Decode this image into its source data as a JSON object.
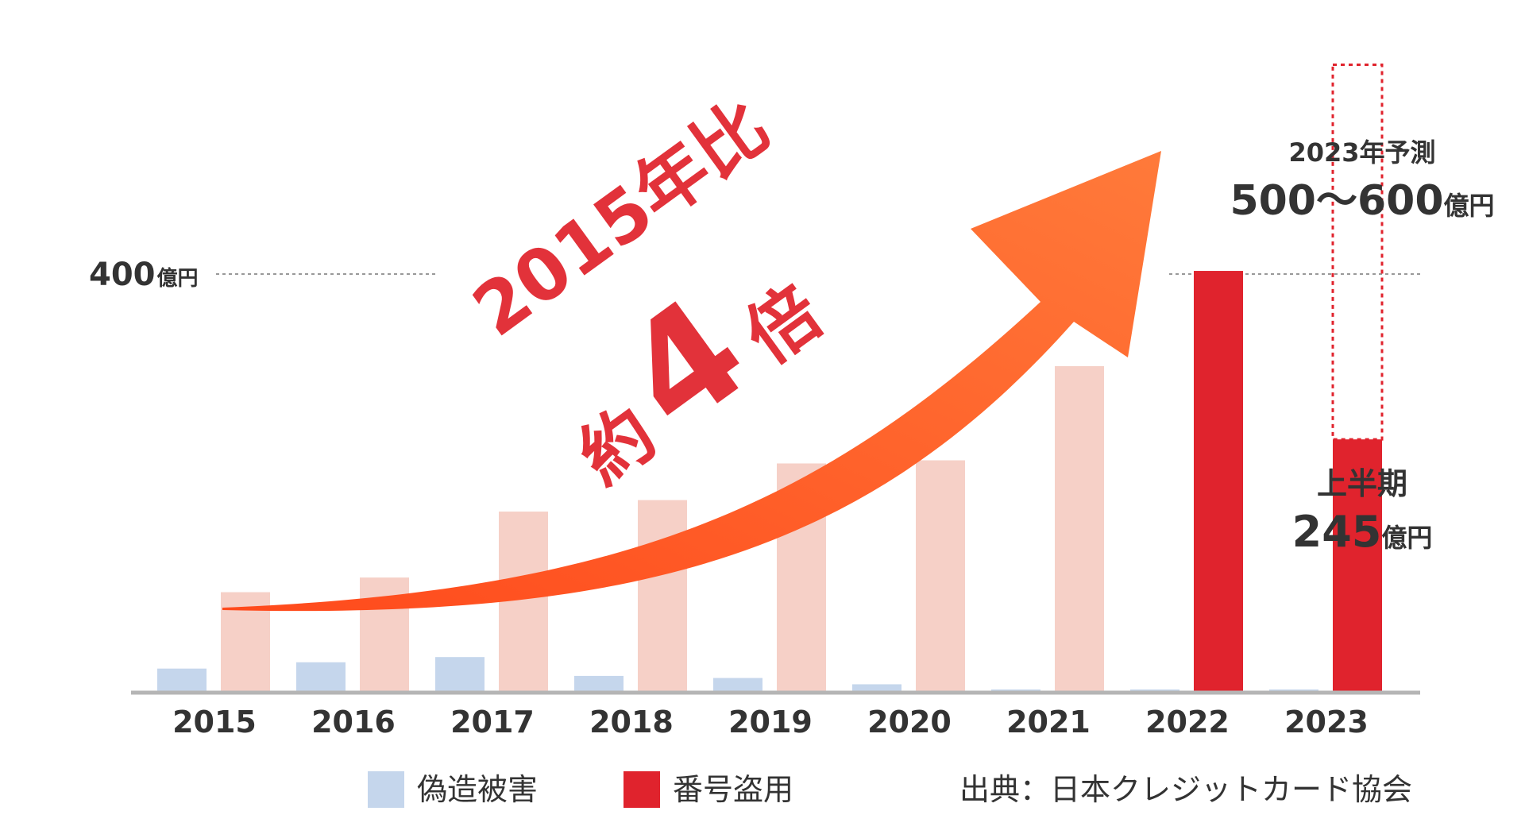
{
  "chart_data": {
    "type": "bar",
    "categories": [
      "2015",
      "2016",
      "2017",
      "2018",
      "2019",
      "2020",
      "2021",
      "2022",
      "2023"
    ],
    "series": [
      {
        "name": "偽造被害",
        "color": "#c5d6ec",
        "values": [
          23,
          29,
          34,
          16,
          14,
          8,
          3,
          3,
          3
        ]
      },
      {
        "name": "番号盗用",
        "color": "#f6d0c7",
        "highlight_color": "#e0232d",
        "highlight_categories": [
          "2022",
          "2023"
        ],
        "values": [
          96,
          110,
          173,
          184,
          219,
          222,
          312,
          403,
          242
        ]
      }
    ],
    "forecast": {
      "category": "2023",
      "range": [
        500,
        600
      ],
      "color": "#e0232d"
    },
    "reference_line": {
      "value": 400,
      "label_value": "400",
      "label_unit": "億円"
    },
    "ylim": [
      0,
      560
    ],
    "arrow_color": "#ff6b2b",
    "annotations": {
      "growth_line1": "2015年比",
      "growth_prefix": "約",
      "growth_number": "4",
      "growth_suffix": "倍",
      "growth_color": "#e2323a",
      "forecast_title": "2023年予測",
      "forecast_value": "500～600",
      "forecast_unit": "億円",
      "half_title": "上半期",
      "half_value": "245",
      "half_unit": "億円"
    },
    "legend": [
      {
        "label": "偽造被害",
        "color": "#c5d6ec"
      },
      {
        "label": "番号盗用",
        "color": "#e0232d"
      }
    ],
    "source": "出典：日本クレジットカード協会",
    "xlabel": "",
    "ylabel": ""
  }
}
